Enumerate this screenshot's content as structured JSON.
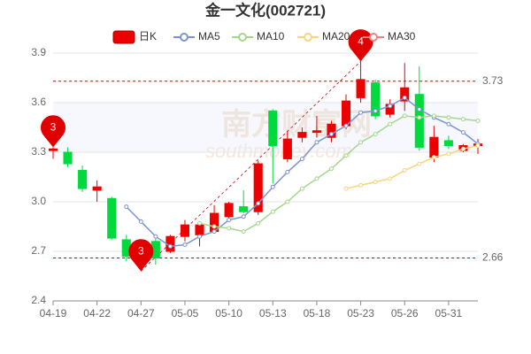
{
  "chart_data": {
    "type": "candlestick",
    "title": "金一文化(002721)",
    "watermark": [
      "南方财富网",
      "southmoney.com"
    ],
    "categories": [
      "04-19",
      null,
      null,
      "04-22",
      null,
      null,
      "04-27",
      null,
      null,
      "05-05",
      null,
      null,
      "05-10",
      null,
      null,
      "05-13",
      null,
      null,
      "05-18",
      null,
      null,
      "05-23",
      null,
      null,
      "05-26",
      null,
      null,
      "05-31",
      null,
      null
    ],
    "candle_name": "日K",
    "up_color": "#ec0000",
    "down_color": "#00da3c",
    "open": [
      3.31,
      3.3,
      3.19,
      3.07,
      3.02,
      2.77,
      2.69,
      2.76,
      2.7,
      2.79,
      2.8,
      2.82,
      2.91,
      2.97,
      2.94,
      3.55,
      3.26,
      3.39,
      3.42,
      3.39,
      3.46,
      3.63,
      3.72,
      3.53,
      3.61,
      3.65,
      3.27,
      3.37,
      3.31,
      3.34
    ],
    "high": [
      3.33,
      3.33,
      3.22,
      3.13,
      3.03,
      2.8,
      2.75,
      2.78,
      2.8,
      2.89,
      2.88,
      2.98,
      3.0,
      3.07,
      3.25,
      3.56,
      3.43,
      3.45,
      3.52,
      3.49,
      3.65,
      3.85,
      3.74,
      3.62,
      3.84,
      3.82,
      3.46,
      3.4,
      3.35,
      3.38
    ],
    "low": [
      3.26,
      3.21,
      3.06,
      3.0,
      2.77,
      2.64,
      2.58,
      2.62,
      2.69,
      2.76,
      2.73,
      2.81,
      2.9,
      2.93,
      2.92,
      3.11,
      3.24,
      3.36,
      3.39,
      3.36,
      3.44,
      3.6,
      3.5,
      3.51,
      3.55,
      3.31,
      3.24,
      3.32,
      3.3,
      3.29
    ],
    "close": [
      3.32,
      3.23,
      3.08,
      3.09,
      2.78,
      2.67,
      2.7,
      2.66,
      2.79,
      2.86,
      2.86,
      2.93,
      2.99,
      2.94,
      3.23,
      3.34,
      3.38,
      3.42,
      3.43,
      3.47,
      3.61,
      3.74,
      3.52,
      3.59,
      3.69,
      3.33,
      3.39,
      3.34,
      3.34,
      3.35
    ],
    "series": [
      {
        "name": "MA5",
        "color": "#7a93d4",
        "values": [
          null,
          null,
          null,
          null,
          null,
          2.97,
          2.88,
          2.79,
          2.73,
          2.74,
          2.79,
          2.82,
          2.89,
          2.91,
          2.99,
          3.09,
          3.18,
          3.26,
          3.36,
          3.41,
          3.46,
          3.54,
          3.55,
          3.58,
          3.63,
          3.56,
          3.51,
          3.47,
          3.42,
          3.35
        ]
      },
      {
        "name": "MA10",
        "color": "#a5d68b",
        "values": [
          null,
          null,
          null,
          null,
          null,
          null,
          null,
          null,
          null,
          null,
          2.87,
          2.85,
          2.84,
          2.82,
          2.87,
          2.94,
          3.0,
          3.08,
          3.14,
          3.2,
          3.28,
          3.36,
          3.41,
          3.47,
          3.52,
          3.51,
          3.52,
          3.51,
          3.5,
          3.49
        ]
      },
      {
        "name": "MA20",
        "color": "#fad37a",
        "values": [
          null,
          null,
          null,
          null,
          null,
          null,
          null,
          null,
          null,
          null,
          null,
          null,
          null,
          null,
          null,
          null,
          null,
          null,
          null,
          null,
          3.08,
          3.1,
          3.12,
          3.14,
          3.19,
          3.23,
          3.27,
          3.29,
          3.32,
          3.34
        ]
      },
      {
        "name": "MA30",
        "color": "#f08080",
        "values": [
          null,
          null,
          null,
          null,
          null,
          null,
          null,
          null,
          null,
          null,
          null,
          null,
          null,
          null,
          null,
          null,
          null,
          null,
          null,
          null,
          null,
          null,
          null,
          null,
          null,
          null,
          null,
          null,
          null,
          null
        ]
      }
    ],
    "ylim": [
      2.4,
      3.9
    ],
    "yticks": [
      3.9,
      3.6,
      3.3,
      {
        "value": 3,
        "label": "3.0"
      },
      2.7,
      2.4
    ],
    "reference_lines": [
      3.73,
      2.66
    ],
    "pins": [
      {
        "text": "3",
        "category": "04-19",
        "value": 3.33
      },
      {
        "text": "3",
        "category": "04-27",
        "value": 2.58
      },
      {
        "text": "4",
        "category": "05-23",
        "value": 3.85
      }
    ]
  }
}
